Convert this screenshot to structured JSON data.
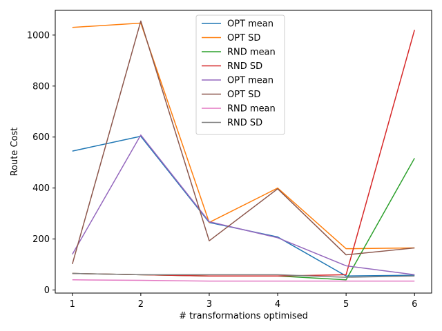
{
  "chart_data": {
    "type": "line",
    "title": "",
    "xlabel": "# transformations optimised",
    "ylabel": "Route Cost",
    "x": [
      1,
      2,
      3,
      4,
      5,
      6
    ],
    "xlim": [
      0.75,
      6.25
    ],
    "ylim": [
      -12,
      1097
    ],
    "xticks": [
      "1",
      "2",
      "3",
      "4",
      "5",
      "6"
    ],
    "yticks": [
      "0",
      "200",
      "400",
      "600",
      "800",
      "1000"
    ],
    "grid": false,
    "legend_position": "top-center",
    "series": [
      {
        "name": "OPT mean",
        "color": "#1f77b4",
        "values": [
          545,
          603,
          265,
          208,
          55,
          58
        ]
      },
      {
        "name": "OPT SD",
        "color": "#ff7f0e",
        "values": [
          1030,
          1047,
          265,
          400,
          162,
          165
        ]
      },
      {
        "name": "RND mean",
        "color": "#2ca02c",
        "values": [
          65,
          60,
          55,
          55,
          40,
          517
        ]
      },
      {
        "name": "RND SD",
        "color": "#d62728",
        "values": [
          65,
          60,
          55,
          55,
          60,
          1020
        ]
      },
      {
        "name": "OPT mean",
        "color": "#9467bd",
        "values": [
          140,
          608,
          268,
          205,
          95,
          60
        ]
      },
      {
        "name": "OPT SD",
        "color": "#8c564b",
        "values": [
          102,
          1055,
          193,
          397,
          138,
          165
        ]
      },
      {
        "name": "RND mean",
        "color": "#e377c2",
        "values": [
          40,
          38,
          35,
          35,
          35,
          35
        ]
      },
      {
        "name": "RND SD",
        "color": "#7f7f7f",
        "values": [
          65,
          60,
          60,
          60,
          50,
          55
        ]
      }
    ]
  }
}
